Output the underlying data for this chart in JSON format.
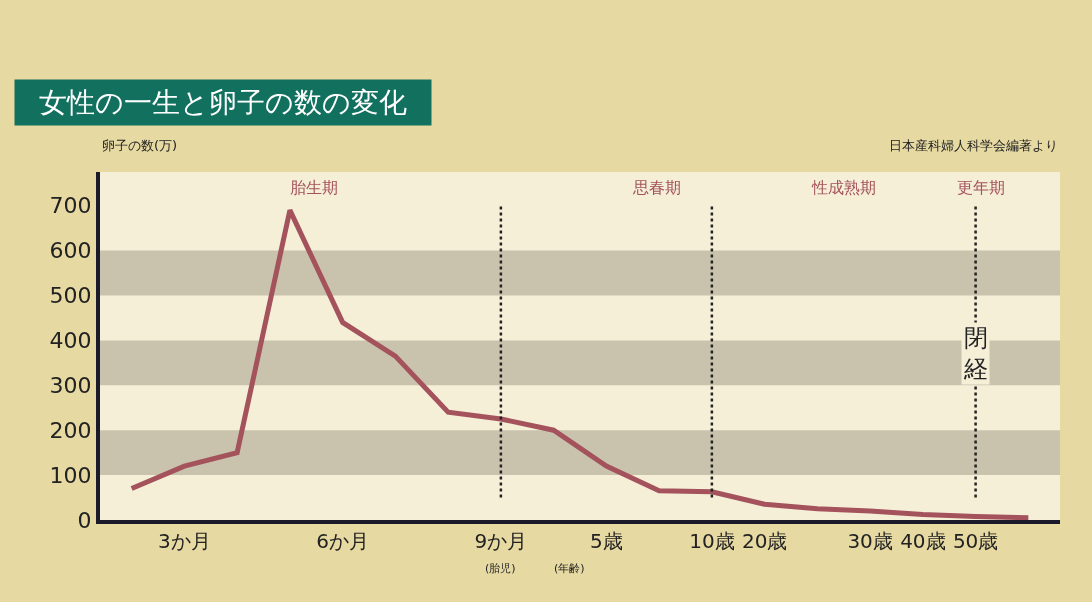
{
  "chart_data": {
    "type": "line",
    "title": "女性の一生と卵子の数の変化",
    "ylabel": "卵子の数(万)",
    "categories": [
      null,
      "3か月",
      null,
      null,
      "6か月",
      null,
      null,
      "9か月",
      null,
      "5歳",
      null,
      "10歳",
      "20歳",
      null,
      "30歳",
      "40歳",
      "50歳",
      null
    ],
    "series": [
      {
        "color": "#a4525b",
        "values": [
          70,
          120,
          150,
          690,
          440,
          365,
          240,
          225,
          200,
          120,
          65,
          63,
          35,
          25,
          20,
          12,
          8,
          5
        ]
      }
    ],
    "ylim": [
      0,
      775
    ],
    "yticks": [
      0,
      100,
      200,
      300,
      400,
      500,
      600,
      700
    ],
    "grid": false,
    "line_style": "solid",
    "bands": [
      {
        "axis": "y",
        "from": 100,
        "to": 200,
        "color": "#c9c3ae"
      },
      {
        "axis": "y",
        "from": 300,
        "to": 400,
        "color": "#c9c3ae"
      },
      {
        "axis": "y",
        "from": 500,
        "to": 600,
        "color": "#c9c3ae"
      }
    ],
    "ref_lines": [
      {
        "axis": "x",
        "value": "9か月",
        "line_style": "dotted",
        "color": "#222222"
      },
      {
        "axis": "x",
        "value": "10歳",
        "line_style": "dotted",
        "color": "#222222"
      },
      {
        "axis": "x",
        "value": "50歳",
        "line_style": "dotted",
        "color": "#222222",
        "label": "閉経"
      }
    ],
    "annotations": [
      "胎生期",
      "思春期",
      "性成熟期",
      "更年期",
      "(胎児)",
      "(年齢)",
      "日本産科婦人科学会編著より"
    ]
  }
}
